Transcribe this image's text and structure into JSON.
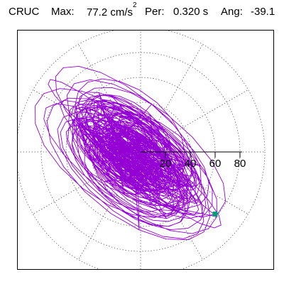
{
  "header": {
    "station": "CRUC",
    "max_label": "Max:",
    "max_value": "77.2",
    "max_unit": "cm/s",
    "max_unit_exp": "2",
    "per_label": "Per:",
    "per_value": "0.320 s",
    "ang_label": "Ang:",
    "ang_value": "-39.1"
  },
  "chart_data": {
    "type": "scatter",
    "title": "CRUC   Max:   77.2 cm/s2  Per:  0.320 s   Ang: -39.1",
    "radial_ticks": [
      "20",
      "40",
      "60",
      "80"
    ],
    "radial_range": [
      0,
      80
    ],
    "polar_rings": [
      20,
      40,
      60,
      80,
      100
    ],
    "grid": "dotted",
    "peak_point": {
      "x": 60,
      "y": -50
    },
    "colors": {
      "trace": "#9400d3",
      "peak_marker": "#009e73",
      "grid": "#666666"
    }
  }
}
